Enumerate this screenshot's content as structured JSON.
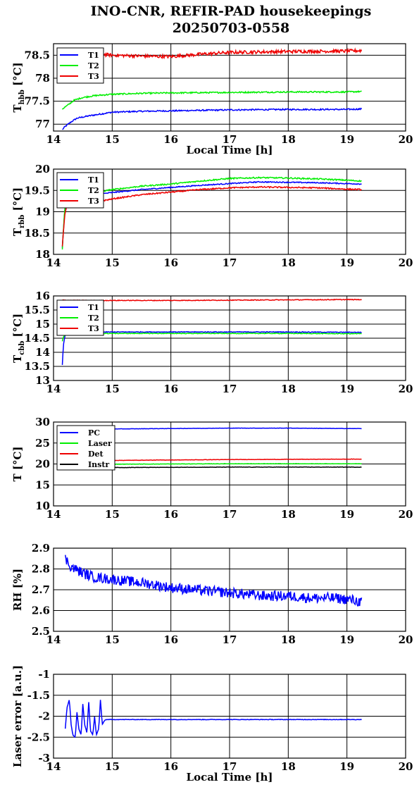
{
  "figure": {
    "title_line1": "INO-CNR, REFIR-PAD housekeepings",
    "title_line2": "20250703-0558"
  },
  "chart_data": [
    {
      "type": "line",
      "id": "hbb",
      "ylabel_main": "T",
      "ylabel_sub": "hbb",
      "ylabel_unit": " [°C]",
      "xlabel": "Local Time [h]",
      "xlim": [
        14,
        20
      ],
      "ylim": [
        76.85,
        78.75
      ],
      "xticks": [
        "14",
        "15",
        "16",
        "17",
        "18",
        "19",
        "20"
      ],
      "yticks": [
        {
          "v": 77,
          "label": "77"
        },
        {
          "v": 77.5,
          "label": "77.5"
        },
        {
          "v": 78,
          "label": "78"
        },
        {
          "v": 78.5,
          "label": "78.5"
        }
      ],
      "grid": true,
      "legend": "top-left",
      "series": [
        {
          "name": "T1",
          "color": "#0000ff",
          "noise": 0.015,
          "x": [
            14.15,
            14.2,
            14.3,
            14.4,
            14.6,
            14.8,
            15.0,
            15.5,
            16.0,
            16.5,
            17.0,
            18.0,
            19.0,
            19.25
          ],
          "y": [
            76.88,
            76.95,
            77.05,
            77.13,
            77.18,
            77.22,
            77.26,
            77.28,
            77.29,
            77.3,
            77.31,
            77.32,
            77.32,
            77.33
          ]
        },
        {
          "name": "T2",
          "color": "#00ee00",
          "noise": 0.015,
          "x": [
            14.15,
            14.25,
            14.35,
            14.5,
            14.7,
            15.0,
            15.5,
            16.0,
            17.0,
            18.0,
            19.0,
            19.25
          ],
          "y": [
            77.33,
            77.42,
            77.52,
            77.58,
            77.62,
            77.65,
            77.67,
            77.68,
            77.69,
            77.7,
            77.7,
            77.71
          ]
        },
        {
          "name": "T3",
          "color": "#ee0000",
          "noise": 0.035,
          "x": [
            14.75,
            15.0,
            15.5,
            16.0,
            16.5,
            17.0,
            18.0,
            19.0,
            19.25
          ],
          "y": [
            78.53,
            78.5,
            78.48,
            78.47,
            78.52,
            78.56,
            78.58,
            78.59,
            78.6
          ]
        }
      ]
    },
    {
      "type": "line",
      "id": "rbb",
      "ylabel_main": "T",
      "ylabel_sub": "rbb",
      "ylabel_unit": " [°C]",
      "xlabel": "",
      "xlim": [
        14,
        20
      ],
      "ylim": [
        18,
        20
      ],
      "xticks": [
        "14",
        "15",
        "16",
        "17",
        "18",
        "19",
        "20"
      ],
      "yticks": [
        {
          "v": 18,
          "label": "18"
        },
        {
          "v": 18.5,
          "label": "18.5"
        },
        {
          "v": 19,
          "label": "19"
        },
        {
          "v": 19.5,
          "label": "19.5"
        },
        {
          "v": 20,
          "label": "20"
        }
      ],
      "grid": true,
      "legend": "top-left",
      "series": [
        {
          "name": "T1",
          "color": "#0000ff",
          "noise": 0.012,
          "x": [
            14.15,
            14.17,
            14.19,
            14.22,
            14.4,
            14.7,
            15.0,
            15.5,
            16.0,
            16.5,
            17.0,
            17.5,
            18.0,
            18.5,
            19.0,
            19.25
          ],
          "y": [
            18.15,
            18.6,
            19.0,
            19.25,
            19.35,
            19.4,
            19.45,
            19.52,
            19.57,
            19.62,
            19.66,
            19.7,
            19.69,
            19.68,
            19.66,
            19.65
          ]
        },
        {
          "name": "T2",
          "color": "#00ee00",
          "noise": 0.015,
          "x": [
            14.15,
            14.17,
            14.19,
            14.22,
            14.4,
            14.7,
            15.0,
            15.5,
            16.0,
            16.5,
            17.0,
            17.5,
            18.0,
            18.5,
            19.0,
            19.25
          ],
          "y": [
            18.12,
            18.6,
            19.05,
            19.3,
            19.4,
            19.45,
            19.52,
            19.6,
            19.65,
            19.72,
            19.78,
            19.8,
            19.79,
            19.77,
            19.74,
            19.72
          ]
        },
        {
          "name": "T3",
          "color": "#ee0000",
          "noise": 0.015,
          "x": [
            14.15,
            14.17,
            14.19,
            14.22,
            14.4,
            14.7,
            15.0,
            15.5,
            16.0,
            16.5,
            17.0,
            17.5,
            18.0,
            18.5,
            19.0,
            19.25
          ],
          "y": [
            18.2,
            18.55,
            18.9,
            19.1,
            19.18,
            19.22,
            19.3,
            19.4,
            19.46,
            19.52,
            19.56,
            19.58,
            19.57,
            19.56,
            19.53,
            19.52
          ]
        }
      ]
    },
    {
      "type": "line",
      "id": "cbb",
      "ylabel_main": "T",
      "ylabel_sub": "cbb",
      "ylabel_unit": " [°C]",
      "xlabel": "",
      "xlim": [
        14,
        20
      ],
      "ylim": [
        13,
        16
      ],
      "xticks": [
        "14",
        "15",
        "16",
        "17",
        "18",
        "19",
        "20"
      ],
      "yticks": [
        {
          "v": 13,
          "label": "13"
        },
        {
          "v": 13.5,
          "label": "13.5"
        },
        {
          "v": 14,
          "label": "14"
        },
        {
          "v": 14.5,
          "label": "14.5"
        },
        {
          "v": 15,
          "label": "15"
        },
        {
          "v": 15.5,
          "label": "15.5"
        },
        {
          "v": 16,
          "label": "16"
        }
      ],
      "grid": true,
      "legend": "top-left",
      "series": [
        {
          "name": "T1",
          "color": "#0000ff",
          "noise": 0.012,
          "x": [
            14.15,
            14.17,
            14.2,
            14.4,
            15.0,
            16.0,
            17.0,
            18.0,
            19.0,
            19.25
          ],
          "y": [
            13.55,
            14.3,
            14.62,
            14.7,
            14.72,
            14.72,
            14.72,
            14.72,
            14.71,
            14.71
          ]
        },
        {
          "name": "T2",
          "color": "#00ee00",
          "noise": 0.012,
          "x": [
            14.15,
            14.17,
            14.2,
            14.4,
            15.0,
            16.0,
            17.0,
            18.0,
            19.0,
            19.25
          ],
          "y": [
            14.4,
            14.55,
            14.62,
            14.66,
            14.67,
            14.67,
            14.67,
            14.67,
            14.66,
            14.66
          ]
        },
        {
          "name": "T3",
          "color": "#ee0000",
          "noise": 0.012,
          "x": [
            14.15,
            14.5,
            15.0,
            16.0,
            17.0,
            18.0,
            19.0,
            19.25
          ],
          "y": [
            15.85,
            15.84,
            15.84,
            15.84,
            15.85,
            15.86,
            15.87,
            15.87
          ]
        }
      ]
    },
    {
      "type": "line",
      "id": "temps",
      "ylabel_main": "T [°C]",
      "ylabel_sub": "",
      "ylabel_unit": "",
      "xlabel": "",
      "xlim": [
        14,
        20
      ],
      "ylim": [
        10,
        30
      ],
      "xticks": [
        "14",
        "15",
        "16",
        "17",
        "18",
        "19",
        "20"
      ],
      "yticks": [
        {
          "v": 10,
          "label": "10"
        },
        {
          "v": 15,
          "label": "15"
        },
        {
          "v": 20,
          "label": "20"
        },
        {
          "v": 25,
          "label": "25"
        },
        {
          "v": 30,
          "label": "30"
        }
      ],
      "grid": true,
      "legend": "top-left",
      "series": [
        {
          "name": "PC",
          "color": "#0000ff",
          "noise": 0.04,
          "x": [
            14.15,
            15.0,
            16.0,
            17.0,
            18.0,
            19.0,
            19.25
          ],
          "y": [
            28.3,
            28.35,
            28.45,
            28.55,
            28.55,
            28.45,
            28.45
          ]
        },
        {
          "name": "Laser",
          "color": "#00ee00",
          "noise": 0.04,
          "x": [
            14.15,
            15.0,
            16.0,
            17.0,
            18.0,
            19.0,
            19.25
          ],
          "y": [
            19.9,
            19.95,
            20.0,
            20.05,
            20.05,
            20.05,
            20.05
          ]
        },
        {
          "name": "Det",
          "color": "#ee0000",
          "noise": 0.04,
          "x": [
            14.15,
            15.0,
            16.0,
            17.0,
            18.0,
            19.0,
            19.25
          ],
          "y": [
            20.8,
            20.85,
            20.95,
            21.05,
            21.1,
            21.15,
            21.15
          ]
        },
        {
          "name": "Instr",
          "color": "#000000",
          "noise": 0.04,
          "x": [
            14.15,
            15.0,
            16.0,
            17.0,
            18.0,
            19.0,
            19.25
          ],
          "y": [
            19.1,
            19.15,
            19.2,
            19.25,
            19.25,
            19.25,
            19.25
          ]
        }
      ]
    },
    {
      "type": "line",
      "id": "rh",
      "ylabel_main": "RH [%]",
      "ylabel_sub": "",
      "ylabel_unit": "",
      "xlabel": "",
      "xlim": [
        14,
        20
      ],
      "ylim": [
        2.5,
        2.9
      ],
      "xticks": [
        "14",
        "15",
        "16",
        "17",
        "18",
        "19",
        "20"
      ],
      "yticks": [
        {
          "v": 2.5,
          "label": "2.5"
        },
        {
          "v": 2.6,
          "label": "2.6"
        },
        {
          "v": 2.7,
          "label": "2.7"
        },
        {
          "v": 2.8,
          "label": "2.8"
        },
        {
          "v": 2.9,
          "label": "2.9"
        }
      ],
      "grid": true,
      "legend": "none",
      "series": [
        {
          "name": "",
          "color": "#0000ff",
          "noise": 0.025,
          "x": [
            14.2,
            14.3,
            14.5,
            14.7,
            15.0,
            15.3,
            15.6,
            16.0,
            16.4,
            16.8,
            17.2,
            17.6,
            18.0,
            18.4,
            18.8,
            19.1,
            19.25
          ],
          "y": [
            2.85,
            2.81,
            2.78,
            2.76,
            2.75,
            2.74,
            2.73,
            2.71,
            2.7,
            2.69,
            2.68,
            2.67,
            2.67,
            2.66,
            2.66,
            2.65,
            2.64
          ]
        }
      ]
    },
    {
      "type": "line",
      "id": "laser",
      "ylabel_main": "Laser error [a.u.]",
      "ylabel_sub": "",
      "ylabel_unit": "",
      "xlabel": "Local Time [h]",
      "xlim": [
        14,
        20
      ],
      "ylim": [
        -3,
        -1
      ],
      "xticks": [
        "14",
        "15",
        "16",
        "17",
        "18",
        "19",
        "20"
      ],
      "yticks": [
        {
          "v": -3,
          "label": "-3"
        },
        {
          "v": -2.5,
          "label": "-2.5"
        },
        {
          "v": -2,
          "label": "-2"
        },
        {
          "v": -1.5,
          "label": "-1.5"
        },
        {
          "v": -1,
          "label": "-1"
        }
      ],
      "grid": true,
      "legend": "none",
      "series": [
        {
          "name": "",
          "color": "#0000ff",
          "noise": 0.006,
          "x": [
            14.2,
            14.23,
            14.27,
            14.3,
            14.33,
            14.37,
            14.4,
            14.43,
            14.47,
            14.5,
            14.53,
            14.57,
            14.6,
            14.63,
            14.67,
            14.7,
            14.73,
            14.77,
            14.8,
            14.83,
            14.87,
            14.9,
            15.0,
            16.0,
            17.0,
            18.0,
            19.0,
            19.25
          ],
          "y": [
            -2.3,
            -1.8,
            -1.6,
            -2.2,
            -2.45,
            -2.5,
            -1.9,
            -2.3,
            -2.45,
            -1.7,
            -2.2,
            -2.4,
            -1.65,
            -2.35,
            -2.45,
            -2.0,
            -2.45,
            -2.3,
            -1.6,
            -2.2,
            -2.1,
            -2.08,
            -2.08,
            -2.08,
            -2.08,
            -2.08,
            -2.08,
            -2.08
          ]
        }
      ]
    }
  ]
}
